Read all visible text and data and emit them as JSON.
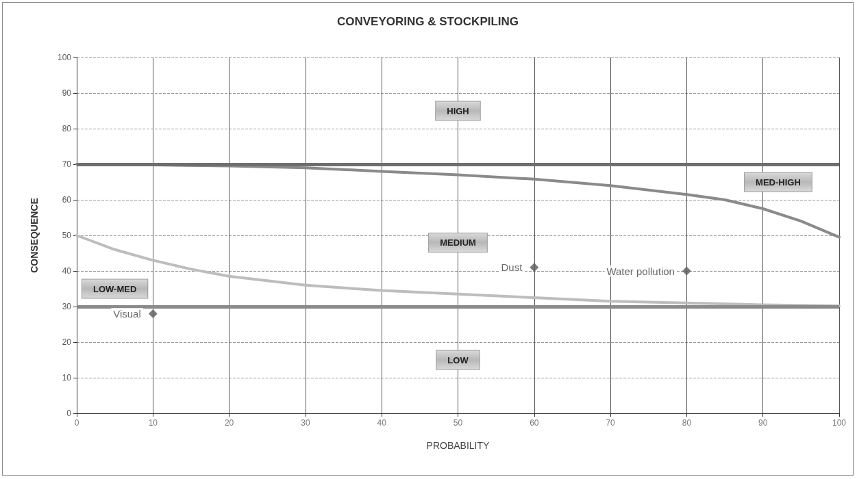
{
  "chart_data": {
    "type": "line",
    "title": "CONVEYORING & STOCKPILING",
    "xlabel": "PROBABILITY",
    "ylabel": "CONSEQUENCE",
    "xlim": [
      0,
      100
    ],
    "xticks": [
      0,
      10,
      20,
      30,
      40,
      50,
      60,
      70,
      80,
      90,
      100
    ],
    "ylim": [
      0,
      100
    ],
    "yticks": [
      0,
      10,
      20,
      30,
      40,
      50,
      60,
      70,
      80,
      90,
      100
    ],
    "grid": true,
    "series": [
      {
        "color": "#8a8a8a",
        "marker": "none",
        "x": [
          0,
          10,
          20,
          30,
          40,
          50,
          60,
          70,
          80,
          85,
          90,
          95,
          100
        ],
        "values": [
          70,
          69.8,
          69.5,
          69,
          68,
          67,
          65.8,
          64,
          61.5,
          60,
          57.5,
          54,
          49.5
        ]
      },
      {
        "color": "#bdbdbd",
        "marker": "none",
        "x": [
          0,
          5,
          10,
          15,
          20,
          30,
          40,
          50,
          60,
          70,
          80,
          90,
          100
        ],
        "values": [
          50,
          46,
          43,
          40.5,
          38.5,
          36,
          34.5,
          33.5,
          32.5,
          31.5,
          31,
          30.5,
          30.2
        ]
      },
      {
        "type": "scatter",
        "color": "#5a5a5a",
        "marker": "diamond",
        "x": [
          10,
          60,
          80
        ],
        "values": [
          28,
          41,
          40
        ],
        "value_labels": [
          "Visual",
          "Dust",
          "Water pollution"
        ]
      }
    ],
    "ref_lines": [
      {
        "axis": "y",
        "value": 70,
        "color": "#6e6e6e"
      },
      {
        "axis": "y",
        "value": 30,
        "color": "#8a8a8a"
      }
    ],
    "annotations": [
      "HIGH",
      "MEDIUM",
      "MED-HIGH",
      "LOW-MED",
      "LOW"
    ]
  }
}
